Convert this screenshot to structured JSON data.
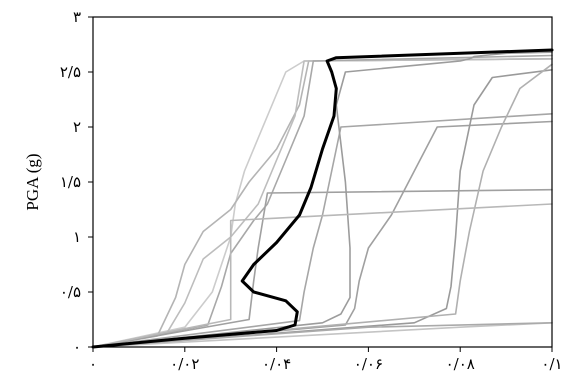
{
  "chart_data": {
    "type": "line",
    "title": "",
    "xlabel": "",
    "ylabel": "PGA (g)",
    "xlim": [
      0,
      0.1
    ],
    "ylim": [
      0,
      3
    ],
    "x_ticks": [
      {
        "value": 0,
        "label": "۰"
      },
      {
        "value": 0.02,
        "label": "۰/۰۲"
      },
      {
        "value": 0.04,
        "label": "۰/۰۴"
      },
      {
        "value": 0.06,
        "label": "۰/۰۶"
      },
      {
        "value": 0.08,
        "label": "۰/۰۸"
      },
      {
        "value": 0.1,
        "label": "۰/۱"
      }
    ],
    "y_ticks": [
      {
        "value": 0,
        "label": "۰"
      },
      {
        "value": 0.5,
        "label": "۰/۵"
      },
      {
        "value": 1,
        "label": "۱"
      },
      {
        "value": 1.5,
        "label": "۱/۵"
      },
      {
        "value": 2,
        "label": "۲"
      },
      {
        "value": 2.5,
        "label": "۲/۵"
      },
      {
        "value": 3,
        "label": "۳"
      }
    ],
    "grid": false,
    "legend": "none",
    "colors": {
      "main": "#000000",
      "background_series": [
        "#9a9a9a",
        "#a8a8a8",
        "#b4b4b4",
        "#c0c0c0",
        "#cccccc"
      ]
    },
    "series": [
      {
        "emphasis": true,
        "color": "#000000",
        "x": [
          0,
          0.02,
          0.04,
          0.044,
          0.0445,
          0.042,
          0.035,
          0.0325,
          0.035,
          0.04,
          0.045,
          0.0475,
          0.05,
          0.0525,
          0.053,
          0.052,
          0.051,
          0.053,
          0.1
        ],
        "y": [
          0,
          0.08,
          0.15,
          0.2,
          0.32,
          0.42,
          0.5,
          0.6,
          0.75,
          0.95,
          1.2,
          1.45,
          1.8,
          2.1,
          2.35,
          2.5,
          2.6,
          2.63,
          2.7
        ]
      },
      {
        "color": "#cccccc",
        "x": [
          0,
          0.02,
          0.026,
          0.03,
          0.031,
          0.033,
          0.036,
          0.039,
          0.042,
          0.046,
          0.1
        ],
        "y": [
          0,
          0.18,
          0.5,
          1.0,
          1.3,
          1.6,
          1.9,
          2.2,
          2.5,
          2.6,
          2.62
        ]
      },
      {
        "color": "#b4b4b4",
        "x": [
          0,
          0.014,
          0.018,
          0.02,
          0.024,
          0.03,
          0.034,
          0.04,
          0.045,
          0.047,
          0.1
        ],
        "y": [
          0,
          0.1,
          0.45,
          0.75,
          1.05,
          1.25,
          1.5,
          1.8,
          2.2,
          2.6,
          2.62
        ]
      },
      {
        "color": "#bdbdbd",
        "x": [
          0,
          0.016,
          0.02,
          0.024,
          0.03,
          0.036,
          0.04,
          0.044,
          0.046,
          0.1
        ],
        "y": [
          0,
          0.12,
          0.4,
          0.8,
          1.0,
          1.3,
          1.7,
          2.1,
          2.6,
          2.62
        ]
      },
      {
        "color": "#a8a8a8",
        "x": [
          0,
          0.025,
          0.028,
          0.03,
          0.035,
          0.038,
          0.042,
          0.046,
          0.048,
          0.1
        ],
        "y": [
          0,
          0.2,
          0.55,
          0.85,
          1.15,
          1.3,
          1.7,
          2.1,
          2.6,
          2.65
        ]
      },
      {
        "color": "#a0a0a0",
        "x": [
          0,
          0.034,
          0.035,
          0.036,
          0.037,
          0.038,
          0.1
        ],
        "y": [
          0,
          0.25,
          0.6,
          0.9,
          1.15,
          1.4,
          1.43
        ]
      },
      {
        "color": "#a6a6a6",
        "x": [
          0,
          0.045,
          0.046,
          0.048,
          0.05,
          0.052,
          0.054,
          0.1
        ],
        "y": [
          0,
          0.24,
          0.5,
          0.9,
          1.2,
          1.6,
          2.0,
          2.12
        ]
      },
      {
        "color": "#9c9c9c",
        "x": [
          0,
          0.05,
          0.054,
          0.056,
          0.056,
          0.055,
          0.053,
          0.055,
          0.075,
          0.08,
          0.082,
          0.083,
          0.085,
          0.09,
          0.1
        ],
        "y": [
          0,
          0.22,
          0.3,
          0.45,
          0.9,
          1.5,
          2.2,
          2.5,
          2.58,
          2.6,
          2.62,
          2.64,
          2.65,
          2.67,
          2.68
        ]
      },
      {
        "color": "#a0a0a0",
        "x": [
          0,
          0.055,
          0.057,
          0.058,
          0.06,
          0.065,
          0.07,
          0.075,
          0.1
        ],
        "y": [
          0,
          0.2,
          0.35,
          0.6,
          0.9,
          1.2,
          1.6,
          2.0,
          2.05
        ]
      },
      {
        "color": "#9a9a9a",
        "x": [
          0,
          0.07,
          0.077,
          0.078,
          0.079,
          0.08,
          0.083,
          0.087,
          0.1
        ],
        "y": [
          0,
          0.22,
          0.35,
          0.55,
          1.0,
          1.6,
          2.2,
          2.45,
          2.52
        ]
      },
      {
        "color": "#b0b0b0",
        "x": [
          0,
          0.079,
          0.08,
          0.082,
          0.085,
          0.089,
          0.093,
          0.1
        ],
        "y": [
          0,
          0.3,
          0.6,
          1.05,
          1.6,
          2.0,
          2.35,
          2.57
        ]
      },
      {
        "color": "#c4c4c4",
        "x": [
          0,
          0.08,
          0.1
        ],
        "y": [
          0,
          0.18,
          0.22
        ]
      },
      {
        "color": "#aaaaaa",
        "x": [
          0,
          0.06,
          0.1
        ],
        "y": [
          0,
          0.18,
          0.22
        ]
      },
      {
        "color": "#b8b8b8",
        "x": [
          0,
          0.03,
          0.03,
          0.1
        ],
        "y": [
          0,
          0.25,
          1.15,
          1.3
        ]
      }
    ]
  }
}
